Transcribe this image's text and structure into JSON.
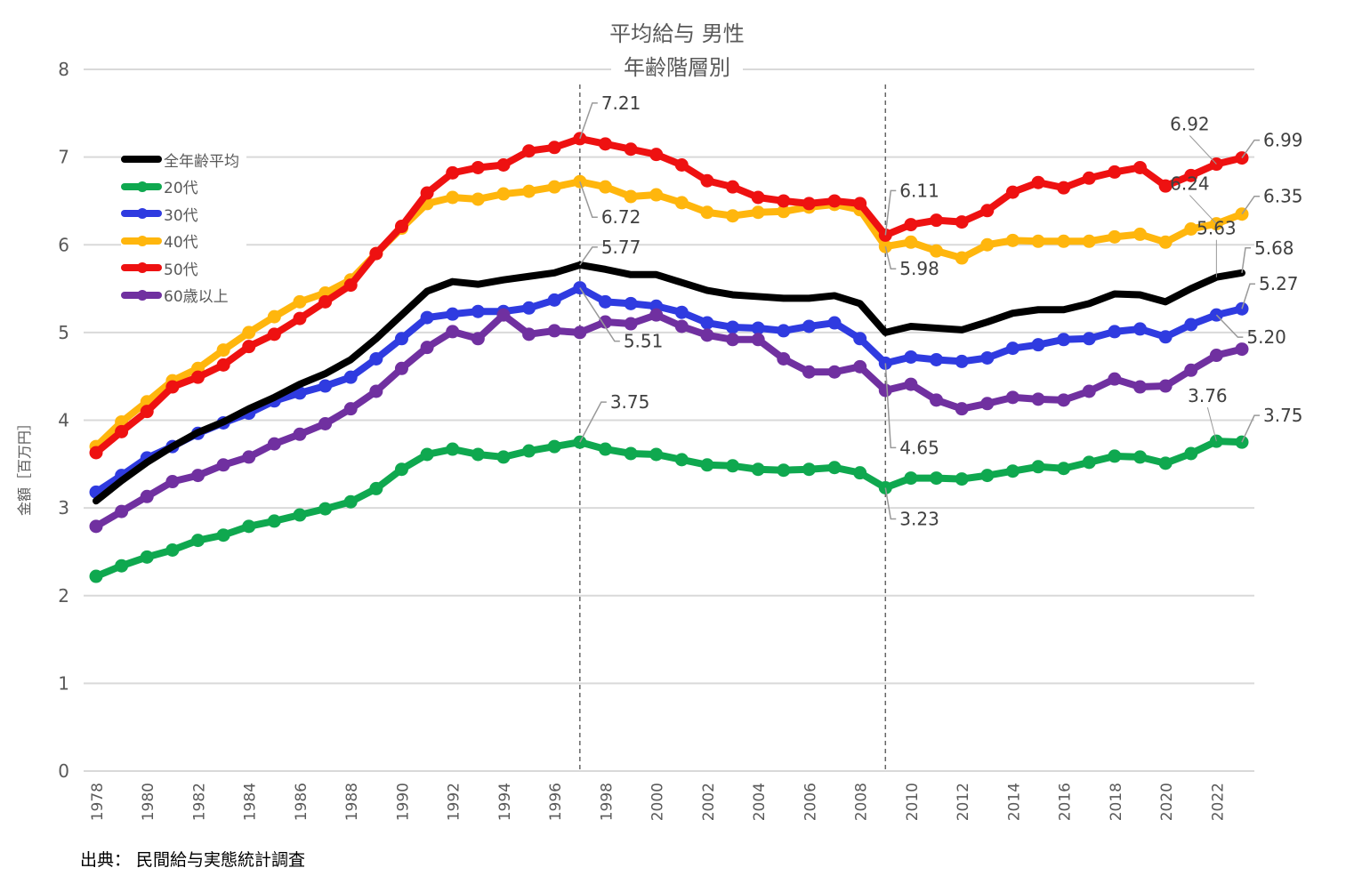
{
  "chart_data": {
    "type": "line",
    "title": "平均給与 男性",
    "subtitle": "年齢階層別",
    "xlabel": "",
    "ylabel": "金額［百万円］",
    "ylim": [
      0,
      8
    ],
    "yticks": [
      0,
      1,
      2,
      3,
      4,
      5,
      6,
      7,
      8
    ],
    "grid": true,
    "legend_position": "top-left",
    "source": "出典： 民間給与実態統計調査",
    "x": [
      1978,
      1979,
      1980,
      1981,
      1982,
      1983,
      1984,
      1985,
      1986,
      1987,
      1988,
      1989,
      1990,
      1991,
      1992,
      1993,
      1994,
      1995,
      1996,
      1997,
      1998,
      1999,
      2000,
      2001,
      2002,
      2003,
      2004,
      2005,
      2006,
      2007,
      2008,
      2009,
      2010,
      2011,
      2012,
      2013,
      2014,
      2015,
      2016,
      2017,
      2018,
      2019,
      2020,
      2021,
      2022,
      2023
    ],
    "xtick_labels": [
      "1978",
      "1980",
      "1982",
      "1984",
      "1986",
      "1988",
      "1990",
      "1992",
      "1994",
      "1996",
      "1998",
      "2000",
      "2002",
      "2004",
      "2006",
      "2008",
      "2010",
      "2012",
      "2014",
      "2016",
      "2018",
      "2020",
      "2022"
    ],
    "reference_lines_x": [
      1997,
      2009
    ],
    "series": [
      {
        "name": "全年齢平均",
        "color": "#000000",
        "markers": false,
        "values": [
          3.08,
          3.31,
          3.52,
          3.7,
          3.86,
          3.98,
          4.13,
          4.26,
          4.41,
          4.53,
          4.69,
          4.93,
          5.2,
          5.47,
          5.58,
          5.55,
          5.6,
          5.64,
          5.68,
          5.77,
          5.72,
          5.66,
          5.66,
          5.57,
          5.48,
          5.43,
          5.41,
          5.39,
          5.39,
          5.42,
          5.33,
          5.0,
          5.07,
          5.05,
          5.03,
          5.12,
          5.22,
          5.26,
          5.26,
          5.33,
          5.44,
          5.43,
          5.35,
          5.5,
          5.63,
          5.68
        ]
      },
      {
        "name": "20代",
        "color": "#0FA84F",
        "markers": true,
        "values": [
          2.22,
          2.34,
          2.44,
          2.52,
          2.63,
          2.69,
          2.79,
          2.85,
          2.92,
          2.99,
          3.07,
          3.22,
          3.44,
          3.61,
          3.67,
          3.61,
          3.58,
          3.65,
          3.7,
          3.75,
          3.67,
          3.62,
          3.61,
          3.55,
          3.49,
          3.48,
          3.44,
          3.43,
          3.44,
          3.46,
          3.4,
          3.23,
          3.34,
          3.34,
          3.33,
          3.37,
          3.42,
          3.47,
          3.45,
          3.52,
          3.59,
          3.58,
          3.51,
          3.62,
          3.76,
          3.75
        ]
      },
      {
        "name": "30代",
        "color": "#2F3BE0",
        "markers": true,
        "values": [
          3.18,
          3.37,
          3.57,
          3.7,
          3.85,
          3.97,
          4.08,
          4.22,
          4.31,
          4.39,
          4.49,
          4.7,
          4.93,
          5.17,
          5.21,
          5.24,
          5.24,
          5.28,
          5.37,
          5.51,
          5.35,
          5.33,
          5.3,
          5.23,
          5.11,
          5.06,
          5.05,
          5.02,
          5.07,
          5.11,
          4.93,
          4.65,
          4.72,
          4.69,
          4.67,
          4.71,
          4.82,
          4.86,
          4.92,
          4.93,
          5.01,
          5.04,
          4.95,
          5.09,
          5.2,
          5.27
        ]
      },
      {
        "name": "40代",
        "color": "#FFB60D",
        "markers": true,
        "values": [
          3.7,
          3.98,
          4.21,
          4.45,
          4.59,
          4.8,
          5.0,
          5.18,
          5.35,
          5.45,
          5.6,
          5.9,
          6.19,
          6.47,
          6.54,
          6.52,
          6.58,
          6.61,
          6.66,
          6.72,
          6.66,
          6.55,
          6.57,
          6.48,
          6.37,
          6.33,
          6.37,
          6.38,
          6.43,
          6.46,
          6.4,
          5.98,
          6.03,
          5.93,
          5.85,
          6.0,
          6.05,
          6.04,
          6.04,
          6.04,
          6.09,
          6.12,
          6.03,
          6.18,
          6.24,
          6.35
        ]
      },
      {
        "name": "50代",
        "color": "#EE1111",
        "markers": true,
        "values": [
          3.63,
          3.87,
          4.1,
          4.38,
          4.49,
          4.63,
          4.84,
          4.98,
          5.16,
          5.35,
          5.54,
          5.9,
          6.21,
          6.59,
          6.82,
          6.88,
          6.91,
          7.07,
          7.11,
          7.21,
          7.15,
          7.09,
          7.03,
          6.91,
          6.73,
          6.66,
          6.54,
          6.5,
          6.47,
          6.5,
          6.47,
          6.11,
          6.23,
          6.28,
          6.26,
          6.39,
          6.6,
          6.71,
          6.65,
          6.76,
          6.83,
          6.88,
          6.67,
          6.79,
          6.92,
          6.99
        ]
      },
      {
        "name": "60歳以上",
        "color": "#7030A0",
        "markers": true,
        "values": [
          2.79,
          2.96,
          3.13,
          3.3,
          3.37,
          3.49,
          3.58,
          3.73,
          3.84,
          3.96,
          4.13,
          4.33,
          4.59,
          4.83,
          5.01,
          4.93,
          5.2,
          4.98,
          5.02,
          5.0,
          5.12,
          5.1,
          5.2,
          5.07,
          4.97,
          4.92,
          4.92,
          4.7,
          4.55,
          4.55,
          4.61,
          4.34,
          4.41,
          4.23,
          4.13,
          4.19,
          4.26,
          4.24,
          4.23,
          4.33,
          4.47,
          4.38,
          4.39,
          4.57,
          4.74,
          4.81
        ]
      }
    ],
    "annotations": [
      {
        "series": "50代",
        "x": 1997,
        "label": "7.21"
      },
      {
        "series": "40代",
        "x": 1997,
        "label": "6.72"
      },
      {
        "series": "全年齢平均",
        "x": 1997,
        "label": "5.77"
      },
      {
        "series": "30代",
        "x": 1997,
        "label": "5.51"
      },
      {
        "series": "20代",
        "x": 1997,
        "label": "3.75"
      },
      {
        "series": "50代",
        "x": 2009,
        "label": "6.11"
      },
      {
        "series": "40代",
        "x": 2009,
        "label": "5.98"
      },
      {
        "series": "30代",
        "x": 2009,
        "label": "4.65"
      },
      {
        "series": "20代",
        "x": 2009,
        "label": "3.23"
      },
      {
        "series": "50代",
        "x": 2022,
        "label": "6.92"
      },
      {
        "series": "50代",
        "x": 2023,
        "label": "6.99"
      },
      {
        "series": "40代",
        "x": 2022,
        "label": "6.24"
      },
      {
        "series": "40代",
        "x": 2023,
        "label": "6.35"
      },
      {
        "series": "全年齢平均",
        "x": 2022,
        "label": "5.63"
      },
      {
        "series": "全年齢平均",
        "x": 2023,
        "label": "5.68"
      },
      {
        "series": "30代",
        "x": 2023,
        "label": "5.27"
      },
      {
        "series": "30代",
        "x": 2022,
        "label": "5.20"
      },
      {
        "series": "20代",
        "x": 2022,
        "label": "3.76"
      },
      {
        "series": "20代",
        "x": 2023,
        "label": "3.75"
      }
    ]
  }
}
